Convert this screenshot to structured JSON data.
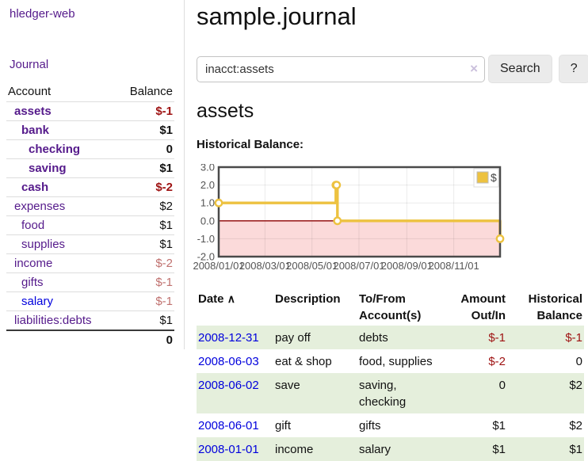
{
  "colors": {
    "link_purple": "#551a8b",
    "link_blue": "#0000dd",
    "negative_red": "#9e1212",
    "negative_rose": "#c0716f",
    "row_stripe_green": "#e5efdc",
    "chart_line_yellow": "#edc240",
    "chart_negative_region_pink": "#fbdada",
    "chart_zero_line_darkred": "#8b0000"
  },
  "sidebar": {
    "brand": "hledger-web",
    "journal_link": "Journal",
    "accounts_table": {
      "headers": {
        "account": "Account",
        "balance": "Balance"
      },
      "rows": [
        {
          "account": "assets",
          "balance": "$-1"
        },
        {
          "account": "bank",
          "balance": "$1"
        },
        {
          "account": "checking",
          "balance": "0"
        },
        {
          "account": "saving",
          "balance": "$1"
        },
        {
          "account": "cash",
          "balance": "$-2"
        },
        {
          "account": "expenses",
          "balance": "$2"
        },
        {
          "account": "food",
          "balance": "$1"
        },
        {
          "account": "supplies",
          "balance": "$1"
        },
        {
          "account": "income",
          "balance": "$-2"
        },
        {
          "account": "gifts",
          "balance": "$-1"
        },
        {
          "account": "salary",
          "balance": "$-1"
        },
        {
          "account": "liabilities:debts",
          "balance": "$1"
        }
      ],
      "total": "0"
    }
  },
  "header": {
    "title": "sample.journal"
  },
  "search": {
    "value": "inacct:assets",
    "clear_icon": "×",
    "search_button": "Search",
    "help_button": "?"
  },
  "account_page": {
    "heading": "assets",
    "chart_title": "Historical Balance:"
  },
  "chart_data": {
    "type": "line",
    "style": "step",
    "title": "Historical Balance",
    "x_range": [
      "2008-01-01",
      "2008-12-31"
    ],
    "ylim": [
      -2,
      3
    ],
    "y_ticks": [
      "3.0",
      "2.0",
      "1.0",
      "0.0",
      "-1.0",
      "-2.0"
    ],
    "x_ticks": [
      "2008/01/01",
      "2008/03/01",
      "2008/05/01",
      "2008/07/01",
      "2008/09/01",
      "2008/11/01"
    ],
    "grid": true,
    "legend": {
      "position": "top-right",
      "label": "$"
    },
    "series": [
      {
        "name": "$",
        "color": "#edc240",
        "points": [
          [
            "2008-01-01",
            1
          ],
          [
            "2008-06-01",
            2
          ],
          [
            "2008-06-02",
            2
          ],
          [
            "2008-06-03",
            0
          ],
          [
            "2008-12-31",
            -1
          ]
        ]
      }
    ],
    "negative_region_color": "#fbdada",
    "zero_line_color": "#8b0000"
  },
  "register": {
    "headers": {
      "date": "Date",
      "sort_indicator": "∧",
      "description": "Description",
      "accounts": "To/From Account(s)",
      "amount": "Amount Out/In",
      "balance": "Historical Balance"
    },
    "rows": [
      {
        "date": "2008-12-31",
        "description": "pay off",
        "accounts": "debts",
        "amount": "$-1",
        "balance": "$-1"
      },
      {
        "date": "2008-06-03",
        "description": "eat & shop",
        "accounts": "food, supplies",
        "amount": "$-2",
        "balance": "0"
      },
      {
        "date": "2008-06-02",
        "description": "save",
        "accounts": "saving, checking",
        "amount": "0",
        "balance": "$2"
      },
      {
        "date": "2008-06-01",
        "description": "gift",
        "accounts": "gifts",
        "amount": "$1",
        "balance": "$2"
      },
      {
        "date": "2008-01-01",
        "description": "income",
        "accounts": "salary",
        "amount": "$1",
        "balance": "$1"
      }
    ]
  }
}
